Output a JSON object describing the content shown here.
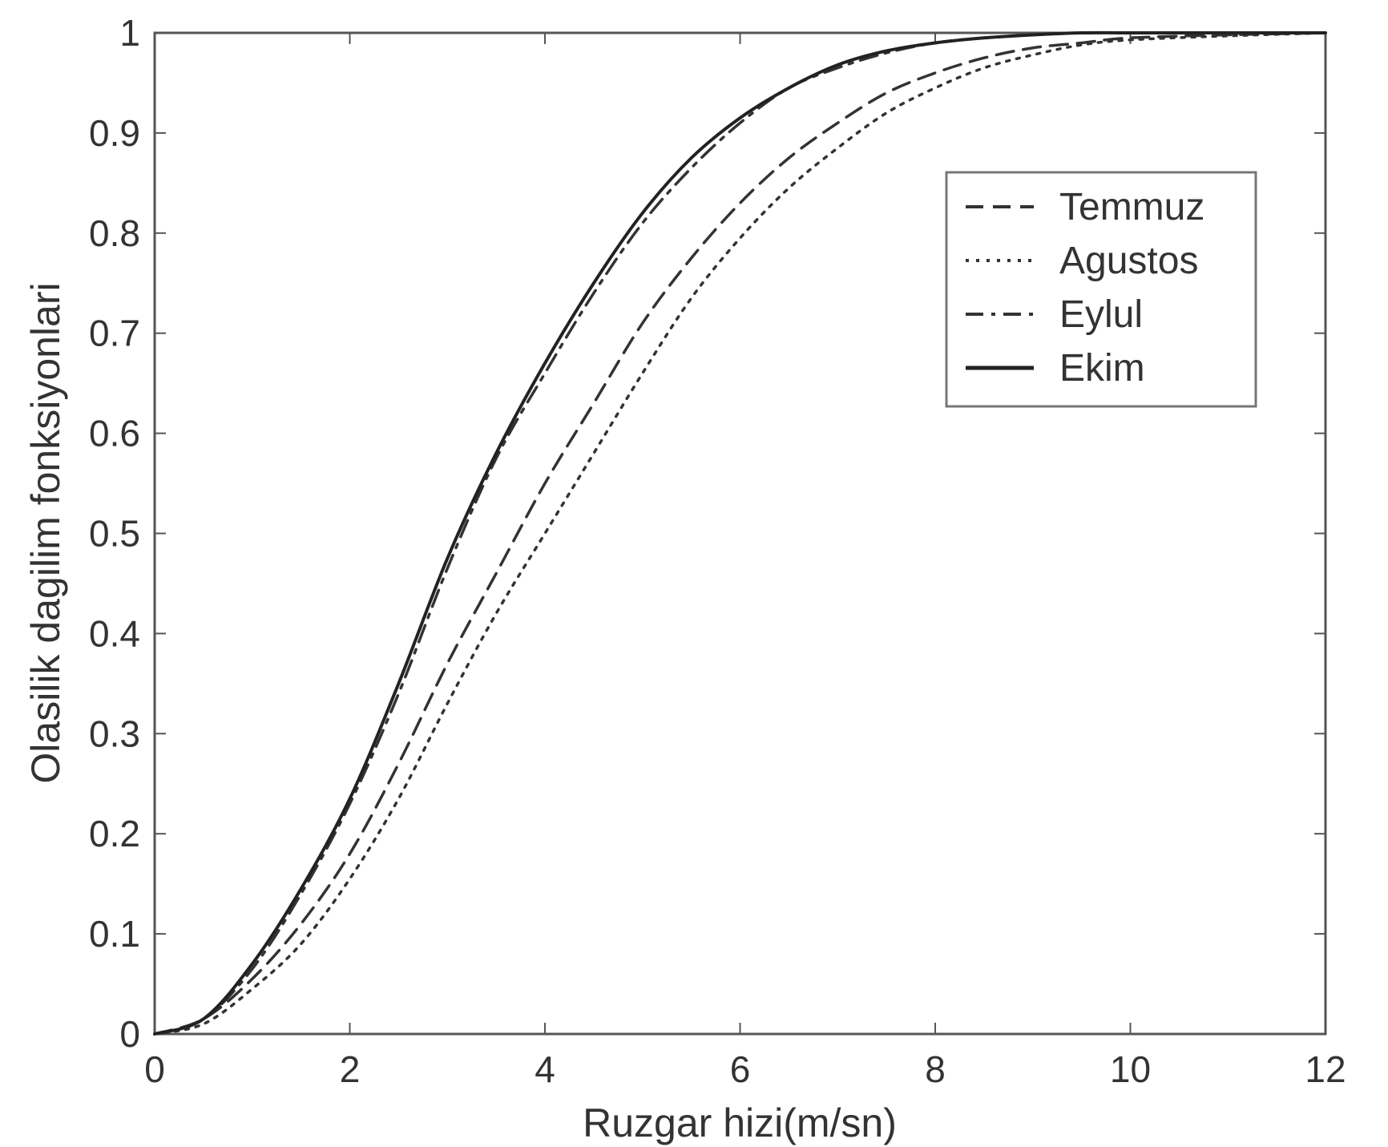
{
  "chart_data": {
    "type": "line",
    "title": "",
    "xlabel": "Ruzgar hizi(m/sn)",
    "ylabel": "Olasilik dagilim fonksiyonlari",
    "xlim": [
      0,
      12
    ],
    "ylim": [
      0,
      1
    ],
    "xticks": [
      0,
      2,
      4,
      6,
      8,
      10,
      12
    ],
    "xtick_labels": [
      "0",
      "2",
      "4",
      "6",
      "8",
      "10",
      "12"
    ],
    "yticks": [
      0,
      0.1,
      0.2,
      0.3,
      0.4,
      0.5,
      0.6,
      0.7,
      0.8,
      0.9,
      1
    ],
    "ytick_labels": [
      "0",
      "0.1",
      "0.2",
      "0.3",
      "0.4",
      "0.5",
      "0.6",
      "0.7",
      "0.8",
      "0.9",
      "1"
    ],
    "grid": false,
    "legend_position": "top-right",
    "series": [
      {
        "name": "Temmuz",
        "style": "dashed",
        "color": "#333333",
        "x": [
          0,
          0.5,
          1,
          1.5,
          2,
          2.5,
          3,
          3.5,
          4,
          4.5,
          5,
          5.5,
          6,
          6.5,
          7,
          7.5,
          8,
          8.5,
          9,
          9.5,
          10,
          11,
          12
        ],
        "y": [
          0,
          0.015,
          0.055,
          0.11,
          0.18,
          0.27,
          0.37,
          0.46,
          0.55,
          0.63,
          0.71,
          0.775,
          0.83,
          0.875,
          0.91,
          0.94,
          0.96,
          0.975,
          0.985,
          0.99,
          0.995,
          0.998,
          1
        ]
      },
      {
        "name": "Agustos",
        "style": "dotted",
        "color": "#333333",
        "x": [
          0,
          0.5,
          1,
          1.5,
          2,
          2.5,
          3,
          3.5,
          4,
          4.5,
          5,
          5.5,
          6,
          6.5,
          7,
          7.5,
          8,
          8.5,
          9,
          9.5,
          10,
          11,
          12
        ],
        "y": [
          0,
          0.01,
          0.045,
          0.09,
          0.155,
          0.235,
          0.33,
          0.42,
          0.5,
          0.58,
          0.66,
          0.735,
          0.795,
          0.845,
          0.885,
          0.92,
          0.945,
          0.965,
          0.978,
          0.988,
          0.993,
          0.997,
          1
        ]
      },
      {
        "name": "Eylul",
        "style": "dashdot",
        "color": "#333333",
        "x": [
          0,
          0.5,
          1,
          1.5,
          2,
          2.5,
          3,
          3.5,
          4,
          4.5,
          5,
          5.5,
          6,
          6.5,
          7,
          7.5,
          8,
          8.5,
          9,
          9.5,
          10,
          11,
          12
        ],
        "y": [
          0,
          0.015,
          0.065,
          0.14,
          0.23,
          0.34,
          0.465,
          0.575,
          0.66,
          0.74,
          0.81,
          0.865,
          0.91,
          0.945,
          0.965,
          0.98,
          0.99,
          0.995,
          0.998,
          1,
          1,
          1,
          1
        ]
      },
      {
        "name": "Ekim",
        "style": "solid",
        "color": "#222222",
        "x": [
          0,
          0.5,
          1,
          1.5,
          2,
          2.5,
          3,
          3.5,
          4,
          4.5,
          5,
          5.5,
          6,
          6.5,
          7,
          7.5,
          8,
          8.5,
          9,
          9.5,
          10,
          11,
          12
        ],
        "y": [
          0,
          0.015,
          0.07,
          0.145,
          0.235,
          0.35,
          0.475,
          0.58,
          0.67,
          0.75,
          0.82,
          0.875,
          0.915,
          0.945,
          0.968,
          0.982,
          0.99,
          0.995,
          0.998,
          1,
          1,
          1,
          1
        ]
      }
    ]
  }
}
